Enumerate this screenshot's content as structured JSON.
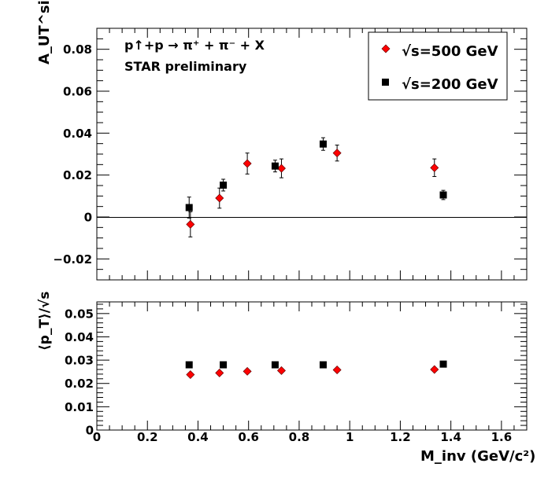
{
  "chart_data": [
    {
      "type": "scatter",
      "title": "p↑+p → π⁺ + π⁻ + X",
      "subtitle": "STAR preliminary",
      "ylabel": "A_UT^sinφ",
      "xlim": [
        0,
        1.7
      ],
      "ylim": [
        -0.03,
        0.09
      ],
      "yticks": [
        "−0.02",
        "0",
        "0.02",
        "0.04",
        "0.06",
        "0.08"
      ],
      "yticks_values": [
        -0.02,
        0,
        0.02,
        0.04,
        0.06,
        0.08
      ],
      "legend_placement": "top-right",
      "series": [
        {
          "name": "√s=500 GeV",
          "color": "#ff0000",
          "marker": "diamond",
          "x": [
            0.37,
            0.485,
            0.595,
            0.73,
            0.95,
            1.335
          ],
          "y": [
            -0.0035,
            0.009,
            0.0255,
            0.0232,
            0.0305,
            0.0235
          ],
          "err": [
            0.006,
            0.0048,
            0.005,
            0.0045,
            0.0038,
            0.0042
          ]
        },
        {
          "name": "√s=200 GeV",
          "color": "#000000",
          "marker": "square",
          "x": [
            0.365,
            0.5,
            0.705,
            0.895,
            1.37
          ],
          "y": [
            0.0045,
            0.0152,
            0.0243,
            0.0348,
            0.0105
          ],
          "err": [
            0.005,
            0.0028,
            0.0028,
            0.003,
            0.0022
          ]
        }
      ]
    },
    {
      "type": "scatter",
      "ylabel": "⟨p_T⟩/√s",
      "xlabel": "M_inv (GeV/c²)",
      "xlim": [
        0,
        1.7
      ],
      "ylim": [
        0,
        0.055
      ],
      "xticks": [
        "0",
        "0.2",
        "0.4",
        "0.6",
        "0.8",
        "1",
        "1.2",
        "1.4",
        "1.6"
      ],
      "xticks_values": [
        0,
        0.2,
        0.4,
        0.6,
        0.8,
        1.0,
        1.2,
        1.4,
        1.6
      ],
      "yticks": [
        "0",
        "0.01",
        "0.02",
        "0.03",
        "0.04",
        "0.05"
      ],
      "yticks_values": [
        0,
        0.01,
        0.02,
        0.03,
        0.04,
        0.05
      ],
      "series": [
        {
          "color": "#ff0000",
          "marker": "diamond",
          "x": [
            0.37,
            0.485,
            0.595,
            0.73,
            0.95,
            1.335
          ],
          "y": [
            0.0238,
            0.0245,
            0.0252,
            0.0255,
            0.0258,
            0.026
          ]
        },
        {
          "color": "#000000",
          "marker": "square",
          "x": [
            0.365,
            0.5,
            0.705,
            0.895,
            1.37
          ],
          "y": [
            0.028,
            0.028,
            0.028,
            0.028,
            0.0283
          ]
        }
      ]
    }
  ]
}
